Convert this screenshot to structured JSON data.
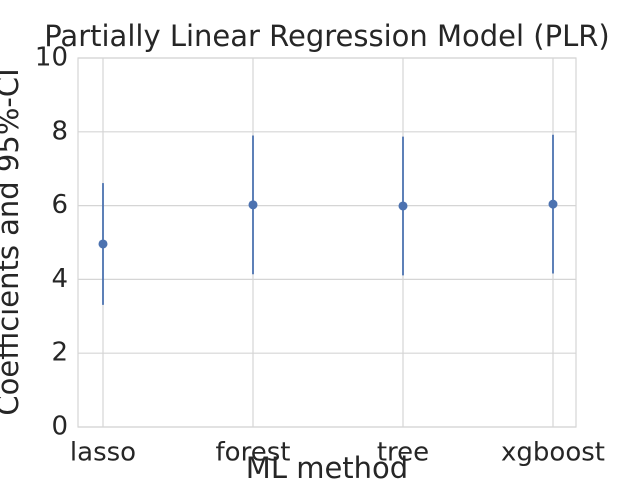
{
  "chart_data": {
    "type": "errorbar",
    "title": "Partially Linear Regression Model (PLR)",
    "x_label": "ML method",
    "y_label": "Coefficients and 95%-CI",
    "categories": [
      "lasso",
      "forest",
      "tree",
      "xgboost"
    ],
    "values": [
      4.96,
      6.02,
      5.99,
      6.04
    ],
    "errors": [
      1.65,
      1.88,
      1.88,
      1.88
    ],
    "color": "#4c72b0",
    "ylim": [
      0,
      10
    ],
    "yticks": [
      0,
      2,
      4,
      6,
      8,
      10
    ],
    "grid": true
  }
}
